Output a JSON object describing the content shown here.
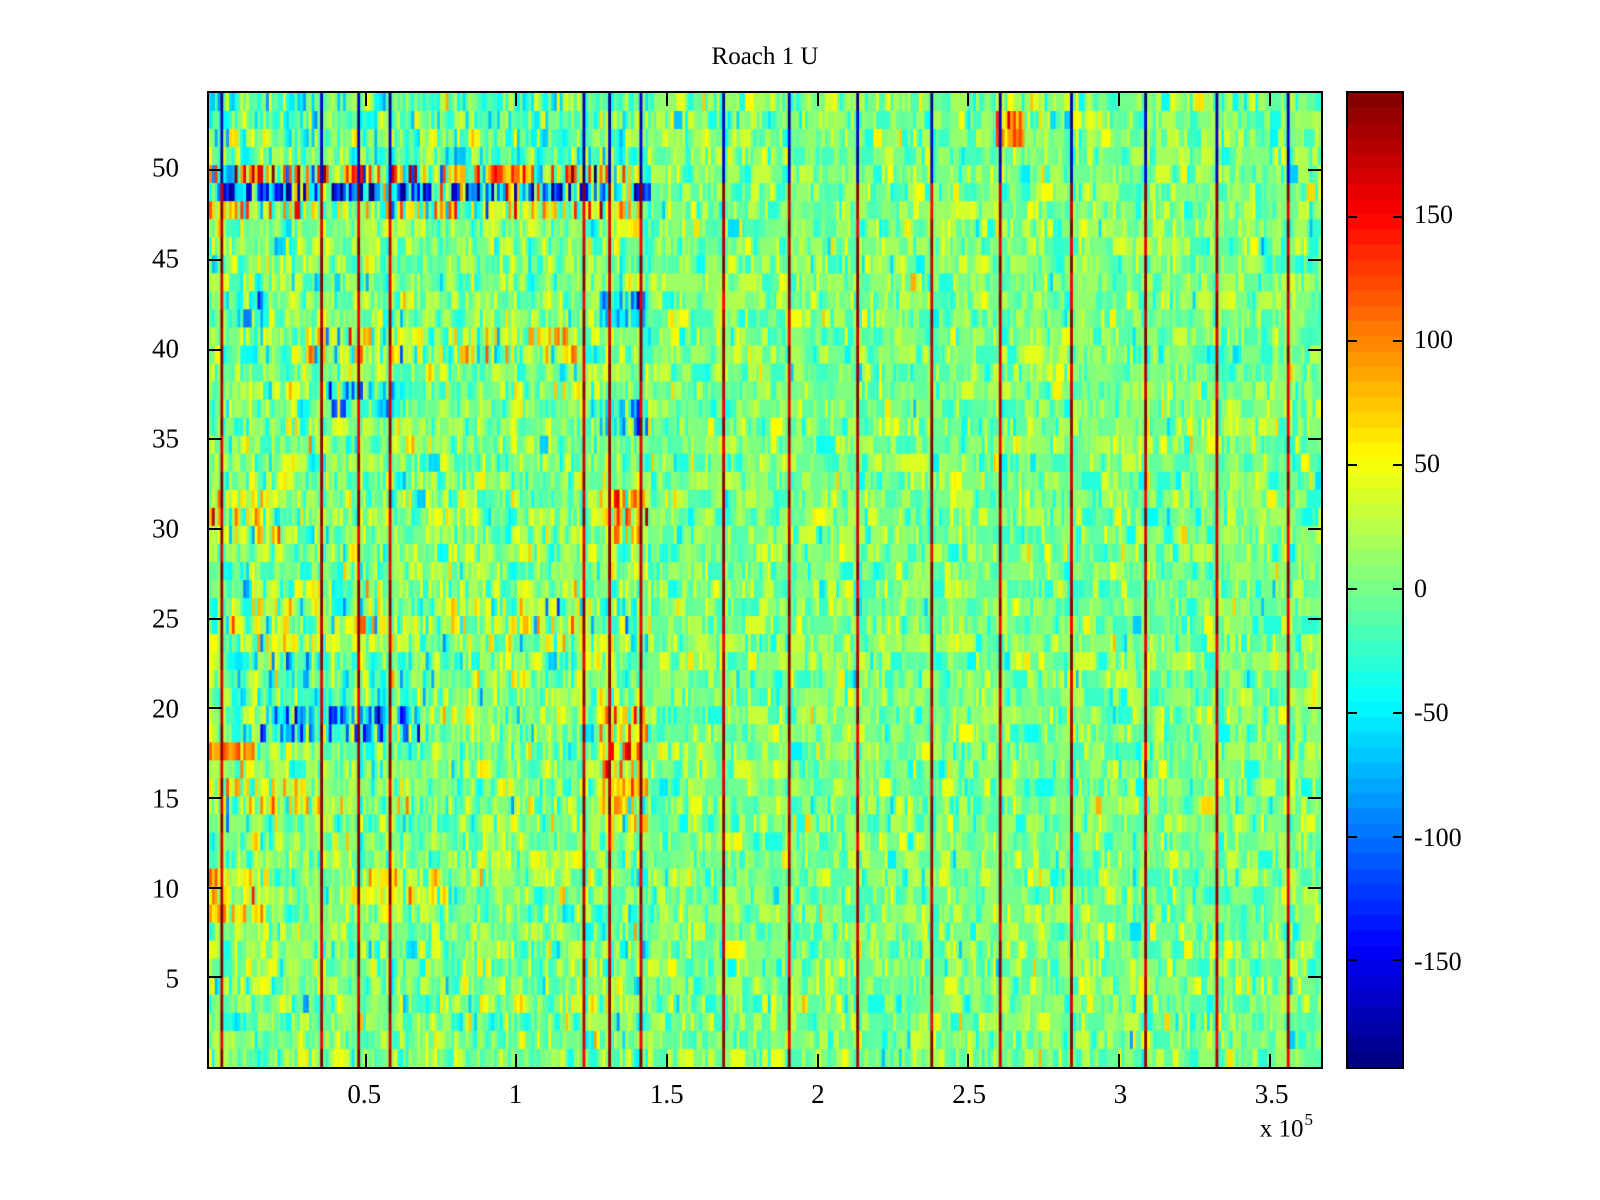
{
  "chart_data": {
    "type": "heatmap",
    "title": "Roach 1 U",
    "colormap": "jet",
    "clim": [
      -193,
      200
    ],
    "x_axis": {
      "range_e5": [
        -0.02,
        3.67
      ],
      "ticks_e5": [
        0.5,
        1,
        1.5,
        2,
        2.5,
        3,
        3.5
      ],
      "tick_labels": [
        "0.5",
        "1",
        "1.5",
        "2",
        "2.5",
        "3",
        "3.5"
      ],
      "exponent_prefix": "x 10",
      "exponent_power": "5"
    },
    "y_axis": {
      "range": [
        0,
        54.3
      ],
      "ticks": [
        5,
        10,
        15,
        20,
        25,
        30,
        35,
        40,
        45,
        50
      ],
      "tick_labels": [
        "5",
        "10",
        "15",
        "20",
        "25",
        "30",
        "35",
        "40",
        "45",
        "50"
      ]
    },
    "colorbar": {
      "ticks": [
        150,
        100,
        50,
        0,
        -50,
        -100,
        -150
      ],
      "tick_labels": [
        "150",
        "100",
        "50",
        "0",
        "-50",
        "-100",
        "-150"
      ],
      "bands": 64
    },
    "grid": {
      "rows": 54,
      "cols": 390
    },
    "noise": {
      "seed": 11,
      "mean": 3,
      "std": 24,
      "run_prob": 0.3
    },
    "regions": [
      {
        "rows": [
          51,
          54
        ],
        "x_e5": [
          -0.02,
          1.45
        ],
        "bias": -12,
        "spread": 18,
        "label": "cool cyan band rows 51-54 left"
      },
      {
        "rows": [
          50,
          50
        ],
        "x_e5": [
          -0.02,
          1.45
        ],
        "bias": 42,
        "spread": 75,
        "label": "hot red/orange streak row 50 left"
      },
      {
        "rows": [
          49,
          49
        ],
        "x_e5": [
          -0.02,
          1.45
        ],
        "bias": -72,
        "spread": 78,
        "label": "deep blue streak row 49 left"
      },
      {
        "rows": [
          48,
          48
        ],
        "x_e5": [
          -0.02,
          1.45
        ],
        "bias": 26,
        "spread": 55,
        "label": "warm streak row 48 left"
      },
      {
        "rows": [
          52,
          53
        ],
        "x_e5": [
          2.59,
          2.69
        ],
        "bias": 95,
        "spread": 30,
        "label": "orange hotspot rows 52-53 near 2.64e5"
      },
      {
        "rows": [
          42,
          43
        ],
        "x_e5": [
          0.02,
          0.16
        ],
        "bias": -45,
        "spread": 35,
        "label": "blue patch rows 42-43 far left"
      },
      {
        "rows": [
          42,
          43
        ],
        "x_e5": [
          1.28,
          1.44
        ],
        "bias": -55,
        "spread": 35,
        "label": "blue patch rows 42-43 near 1.35e5"
      },
      {
        "rows": [
          37,
          38
        ],
        "x_e5": [
          0.38,
          0.62
        ],
        "bias": -45,
        "spread": 38,
        "label": "blue patch rows 37-38"
      },
      {
        "rows": [
          36,
          37
        ],
        "x_e5": [
          1.28,
          1.44
        ],
        "bias": -50,
        "spread": 35,
        "label": "blue patch rows 36-37 near 1.35e5"
      },
      {
        "rows": [
          40,
          41
        ],
        "x_e5": [
          0.3,
          1.2
        ],
        "bias": 18,
        "spread": 38,
        "label": "yellow band rows 40-41"
      },
      {
        "rows": [
          19,
          20
        ],
        "x_e5": [
          0.15,
          0.68
        ],
        "bias": -52,
        "spread": 45,
        "label": "deep blue patch rows 19-20"
      },
      {
        "rows": [
          14,
          20
        ],
        "x_e5": [
          1.28,
          1.44
        ],
        "bias": 55,
        "spread": 45,
        "label": "orange column block rows 14-20 near 1.35e5"
      },
      {
        "rows": [
          15,
          16
        ],
        "x_e5": [
          -0.02,
          0.35
        ],
        "bias": 40,
        "spread": 35,
        "label": "yellow patch rows 15-16 left"
      },
      {
        "rows": [
          9,
          11
        ],
        "x_e5": [
          -0.02,
          0.18
        ],
        "bias": 50,
        "spread": 35,
        "label": "orange patch rows 9-11 far left"
      },
      {
        "rows": [
          10,
          11
        ],
        "x_e5": [
          0.45,
          0.8
        ],
        "bias": 35,
        "spread": 35,
        "label": "orange patch rows 10-11"
      },
      {
        "rows": [
          18,
          18
        ],
        "x_e5": [
          -0.02,
          0.14
        ],
        "bias": 78,
        "spread": 25,
        "label": "orange spot row 18 far left"
      },
      {
        "rows": [
          30,
          32
        ],
        "x_e5": [
          -0.02,
          0.22
        ],
        "bias": 40,
        "spread": 35,
        "label": "yellow-orange patch rows 30-32 left"
      },
      {
        "rows": [
          30,
          32
        ],
        "x_e5": [
          1.28,
          1.44
        ],
        "bias": 62,
        "spread": 40,
        "label": "orange patch rows 30-32 near 1.35e5"
      },
      {
        "rows": [
          24,
          26
        ],
        "x_e5": [
          -0.02,
          1.45
        ],
        "bias": 10,
        "spread": 28,
        "label": "mixed warm band rows 24-26 left"
      },
      {
        "rows": [
          21,
          23
        ],
        "x_e5": [
          0.05,
          0.7
        ],
        "bias": -18,
        "spread": 25,
        "label": "cyan patch rows 21-23"
      },
      {
        "rows": [
          1,
          54
        ],
        "x_e5": [
          -0.02,
          1.45
        ],
        "bias": 0,
        "spread": 14,
        "label": "extra variance in left third"
      }
    ],
    "bad_columns_e5": [
      0.015,
      0.35,
      0.47,
      0.58,
      1.22,
      1.3,
      1.41,
      1.68,
      1.9,
      2.13,
      2.37,
      2.6,
      2.84,
      3.08,
      3.32,
      3.56
    ],
    "bad_column_values": {
      "body_min": 150,
      "body_spread": 70,
      "top_rows_from": 50,
      "top_min": -150,
      "top_spread": -45
    }
  }
}
